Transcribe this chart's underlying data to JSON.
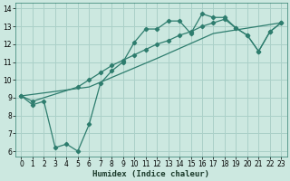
{
  "xlabel": "Humidex (Indice chaleur)",
  "bg_color": "#cce8e0",
  "grid_color": "#aad0c8",
  "line_color": "#2e7d6e",
  "xlim": [
    -0.5,
    23.5
  ],
  "ylim": [
    5.7,
    14.3
  ],
  "xticks": [
    0,
    1,
    2,
    3,
    4,
    5,
    6,
    7,
    8,
    9,
    10,
    11,
    12,
    13,
    14,
    15,
    16,
    17,
    18,
    19,
    20,
    21,
    22,
    23
  ],
  "yticks": [
    6,
    7,
    8,
    9,
    10,
    11,
    12,
    13,
    14
  ],
  "line1_x": [
    0,
    1,
    2,
    3,
    4,
    5,
    6,
    7,
    8,
    9,
    10,
    11,
    12,
    13,
    14,
    15,
    16,
    17,
    18,
    19,
    20,
    21,
    22,
    23
  ],
  "line1_y": [
    9.1,
    8.6,
    8.8,
    6.2,
    6.4,
    6.0,
    7.5,
    9.8,
    10.5,
    11.0,
    12.1,
    12.85,
    12.85,
    13.3,
    13.3,
    12.6,
    13.7,
    13.5,
    13.5,
    12.9,
    12.5,
    11.6,
    12.7,
    13.2
  ],
  "line2_x": [
    0,
    1,
    5,
    6,
    7,
    8,
    9,
    10,
    11,
    12,
    13,
    14,
    15,
    16,
    17,
    18,
    19,
    20,
    21,
    22,
    23
  ],
  "line2_y": [
    9.1,
    8.8,
    9.6,
    10.0,
    10.4,
    10.8,
    11.1,
    11.4,
    11.7,
    12.0,
    12.2,
    12.5,
    12.7,
    13.0,
    13.2,
    13.4,
    12.9,
    12.5,
    11.6,
    12.7,
    13.2
  ],
  "line3_x": [
    0,
    6,
    12,
    17,
    23
  ],
  "line3_y": [
    9.1,
    9.6,
    11.2,
    12.6,
    13.2
  ]
}
